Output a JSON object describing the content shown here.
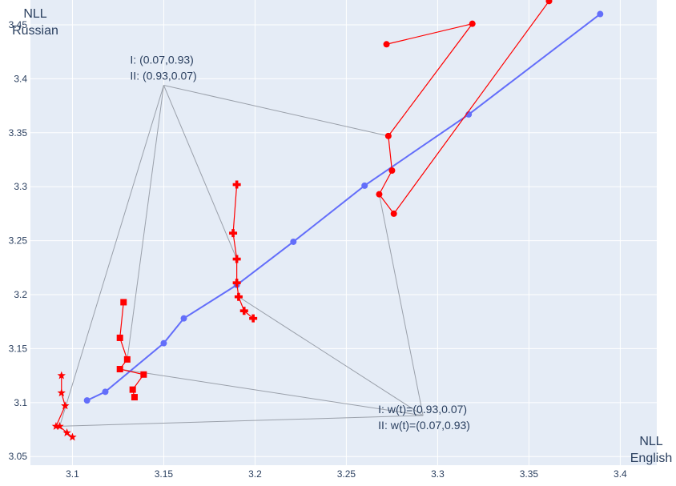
{
  "chart_data": {
    "type": "scatter",
    "xlabel": [
      "NLL",
      "English"
    ],
    "ylabel": [
      "NLL",
      "Russian"
    ],
    "xlim": [
      3.077,
      3.42
    ],
    "ylim": [
      3.042,
      3.473
    ],
    "grid": true,
    "x_ticks": [
      3.1,
      3.15,
      3.2,
      3.25,
      3.3,
      3.35,
      3.4
    ],
    "y_ticks": [
      3.05,
      3.1,
      3.15,
      3.2,
      3.25,
      3.3,
      3.35,
      3.4,
      3.45
    ],
    "x_tick_labels": [
      "3.1",
      "3.15",
      "3.2",
      "3.25",
      "3.3",
      "3.35",
      "3.4"
    ],
    "y_tick_labels": [
      "3.05",
      "3.1",
      "3.15",
      "3.2",
      "3.25",
      "3.3",
      "3.35",
      "3.4",
      "3.45"
    ],
    "series": [
      {
        "color": "#636efa",
        "marker": "circle",
        "points": [
          [
            3.108,
            3.102
          ],
          [
            3.118,
            3.11
          ],
          [
            3.15,
            3.155
          ],
          [
            3.161,
            3.178
          ],
          [
            3.19,
            3.209
          ],
          [
            3.221,
            3.249
          ],
          [
            3.26,
            3.301
          ],
          [
            3.317,
            3.367
          ],
          [
            3.389,
            3.46
          ]
        ]
      },
      {
        "color": "#ff0000",
        "marker": "star",
        "points": [
          [
            3.094,
            3.125
          ],
          [
            3.094,
            3.109
          ],
          [
            3.096,
            3.097
          ],
          [
            3.091,
            3.078
          ],
          [
            3.093,
            3.078
          ],
          [
            3.097,
            3.072
          ],
          [
            3.1,
            3.068
          ]
        ]
      },
      {
        "color": "#ff0000",
        "marker": "square",
        "points": [
          [
            3.128,
            3.193
          ],
          [
            3.126,
            3.16
          ],
          [
            3.13,
            3.14
          ],
          [
            3.126,
            3.131
          ],
          [
            3.139,
            3.126
          ],
          [
            3.133,
            3.112
          ],
          [
            3.134,
            3.105
          ]
        ]
      },
      {
        "color": "#ff0000",
        "marker": "cross",
        "points": [
          [
            3.19,
            3.302
          ],
          [
            3.188,
            3.257
          ],
          [
            3.19,
            3.233
          ],
          [
            3.19,
            3.211
          ],
          [
            3.191,
            3.198
          ],
          [
            3.194,
            3.185
          ],
          [
            3.199,
            3.178
          ]
        ]
      },
      {
        "color": "#ff0000",
        "marker": "circle",
        "points": [
          [
            3.272,
            3.432
          ],
          [
            3.319,
            3.451
          ],
          [
            3.273,
            3.347
          ],
          [
            3.275,
            3.315
          ],
          [
            3.268,
            3.293
          ],
          [
            3.276,
            3.275
          ],
          [
            3.361,
            3.472
          ]
        ]
      }
    ],
    "annotations": [
      {
        "lines": [
          "I:  (0.07,0.93)",
          "II: (0.93,0.07)"
        ],
        "anchor": [
          3.15,
          3.394
        ],
        "targets": [
          [
            3.093,
            3.078
          ],
          [
            3.13,
            3.14
          ],
          [
            3.19,
            3.233
          ],
          [
            3.273,
            3.347
          ]
        ]
      },
      {
        "lines": [
          "I:  w(t)=(0.93,0.07)",
          "II: w(t)=(0.07,0.93)"
        ],
        "anchor": [
          3.292,
          3.088
        ],
        "targets": [
          [
            3.091,
            3.078
          ],
          [
            3.126,
            3.131
          ],
          [
            3.191,
            3.198
          ],
          [
            3.268,
            3.293
          ]
        ]
      }
    ]
  }
}
